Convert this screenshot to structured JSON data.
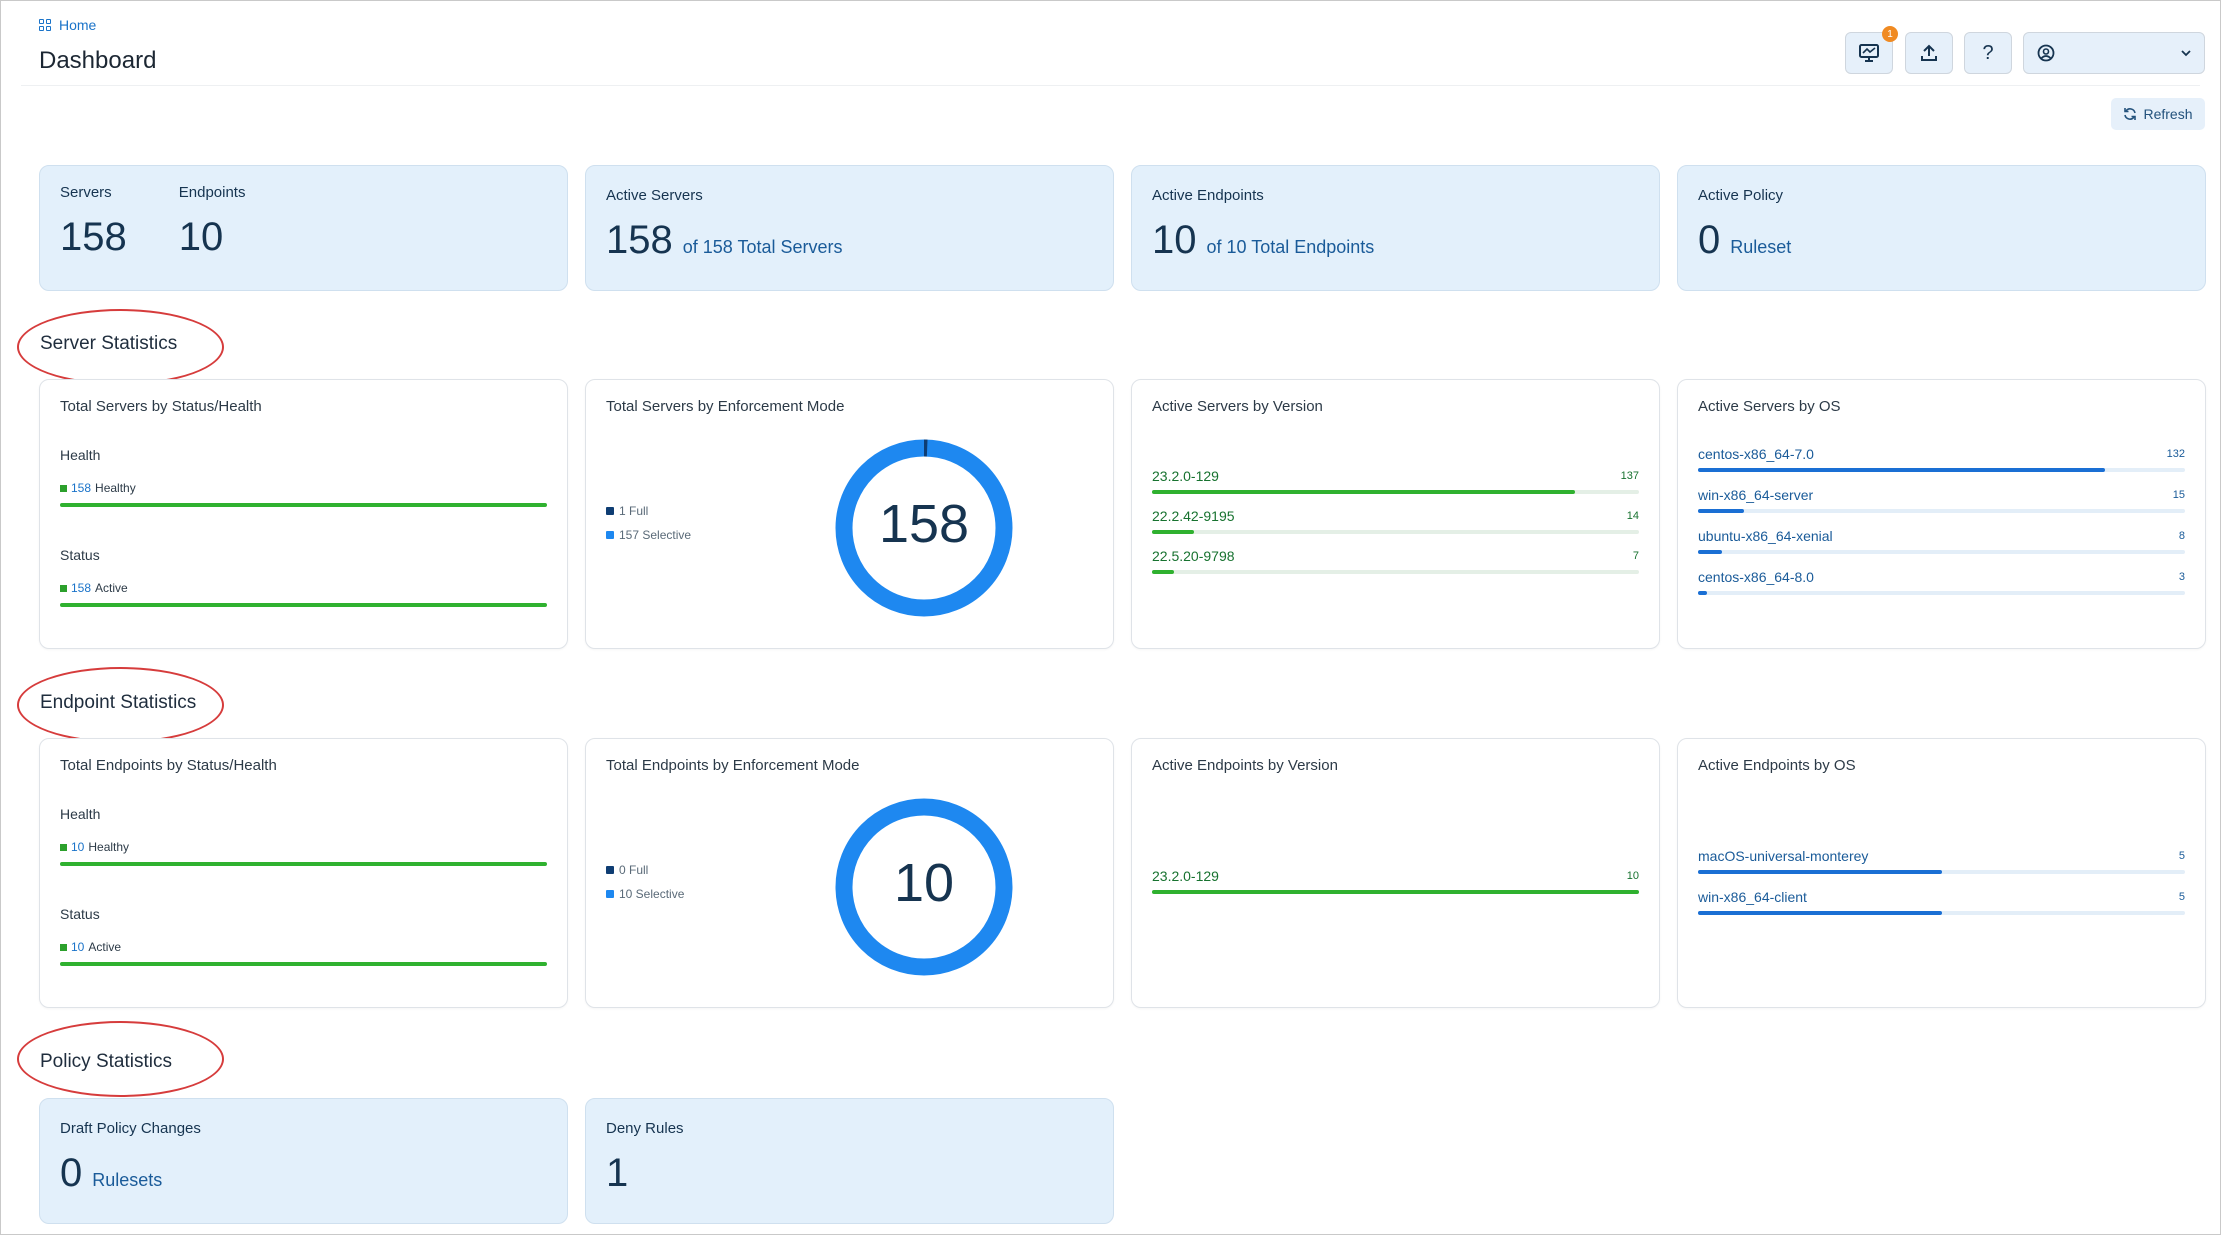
{
  "breadcrumb": {
    "home": "Home"
  },
  "page_title": "Dashboard",
  "header": {
    "notification_count": "1",
    "refresh_label": "Refresh"
  },
  "summary": {
    "servers_label": "Servers",
    "servers_value": "158",
    "endpoints_label": "Endpoints",
    "endpoints_value": "10",
    "active_servers": {
      "label": "Active Servers",
      "value": "158",
      "suffix": "of 158 Total Servers"
    },
    "active_endpoints": {
      "label": "Active Endpoints",
      "value": "10",
      "suffix": "of 10 Total Endpoints"
    },
    "active_policy": {
      "label": "Active Policy",
      "value": "0",
      "suffix": "Ruleset"
    }
  },
  "server_stats": {
    "heading": "Server Statistics",
    "status_health": {
      "title": "Total Servers by Status/Health",
      "health_label": "Health",
      "health_count": "158",
      "health_text": "Healthy",
      "status_label": "Status",
      "status_count": "158",
      "status_text": "Active"
    },
    "enforcement": {
      "title": "Total Servers by Enforcement Mode",
      "legend": [
        "1 Full",
        "157 Selective"
      ],
      "total": "158",
      "full": 1,
      "selective": 157
    },
    "by_version": {
      "title": "Active Servers by Version",
      "rows": [
        {
          "label": "23.2.0-129",
          "value": "137",
          "frac": 0.868
        },
        {
          "label": "22.2.42-9195",
          "value": "14",
          "frac": 0.087
        },
        {
          "label": "22.5.20-9798",
          "value": "7",
          "frac": 0.045
        }
      ]
    },
    "by_os": {
      "title": "Active Servers by OS",
      "rows": [
        {
          "label": "centos-x86_64-7.0",
          "value": "132",
          "frac": 0.835
        },
        {
          "label": "win-x86_64-server",
          "value": "15",
          "frac": 0.095
        },
        {
          "label": "ubuntu-x86_64-xenial",
          "value": "8",
          "frac": 0.05
        },
        {
          "label": "centos-x86_64-8.0",
          "value": "3",
          "frac": 0.019
        }
      ]
    }
  },
  "endpoint_stats": {
    "heading": "Endpoint Statistics",
    "status_health": {
      "title": "Total Endpoints by Status/Health",
      "health_label": "Health",
      "health_count": "10",
      "health_text": "Healthy",
      "status_label": "Status",
      "status_count": "10",
      "status_text": "Active"
    },
    "enforcement": {
      "title": "Total Endpoints by Enforcement Mode",
      "legend": [
        "0 Full",
        "10 Selective"
      ],
      "total": "10",
      "full": 0,
      "selective": 10
    },
    "by_version": {
      "title": "Active Endpoints by Version",
      "rows": [
        {
          "label": "23.2.0-129",
          "value": "10",
          "frac": 1.0
        }
      ]
    },
    "by_os": {
      "title": "Active Endpoints by OS",
      "rows": [
        {
          "label": "macOS-universal-monterey",
          "value": "5",
          "frac": 0.5
        },
        {
          "label": "win-x86_64-client",
          "value": "5",
          "frac": 0.5
        }
      ]
    }
  },
  "policy_stats": {
    "heading": "Policy Statistics",
    "draft": {
      "label": "Draft Policy Changes",
      "value": "0",
      "suffix": "Rulesets"
    },
    "deny": {
      "label": "Deny Rules",
      "value": "1"
    }
  },
  "colors": {
    "accent": "#1a73c9",
    "healthy_green": "#2fb12f",
    "donut_blue": "#1e88f0",
    "annotation_red": "#d63c3c"
  }
}
